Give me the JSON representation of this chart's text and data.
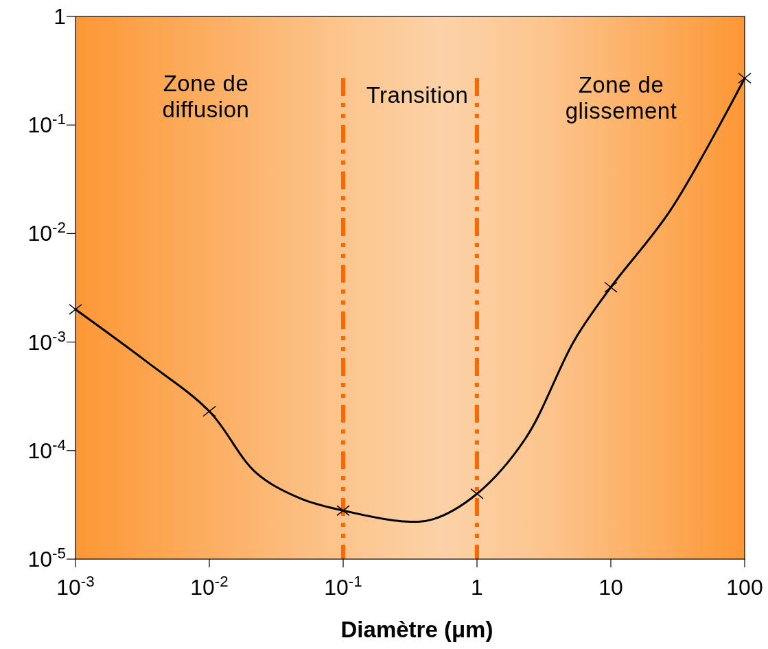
{
  "chart_data": {
    "type": "line",
    "xlabel": "Diamètre (μm)",
    "log": "xy",
    "grid": false,
    "xlim": [
      0.001,
      100
    ],
    "ylim": [
      1e-05,
      1
    ],
    "xticks": [
      {
        "value": 0.001,
        "label": "10$^{-3}$"
      },
      {
        "value": 0.01,
        "label": "10$^{-2}$"
      },
      {
        "value": 0.1,
        "label": "10$^{-1}$"
      },
      1,
      10,
      100
    ],
    "yticks": [
      {
        "value": 1e-05,
        "label": "10$^{-5}$"
      },
      {
        "value": 0.0001,
        "label": "10$^{-4}$"
      },
      {
        "value": 0.001,
        "label": "10$^{-3}$"
      },
      {
        "value": 0.01,
        "label": "10$^{-2}$"
      },
      {
        "value": 0.1,
        "label": "10$^{-1}$"
      },
      1
    ],
    "series": [
      {
        "type": "line",
        "color": "#000000",
        "marker": "none",
        "line_style": "solid",
        "x": [
          0.001,
          0.0034,
          0.01,
          0.0222,
          0.0484,
          0.1,
          0.277,
          0.469,
          1,
          2.31,
          5.35,
          10,
          27.9,
          100
        ],
        "values": [
          0.002,
          0.00066,
          0.00023,
          6.3e-05,
          3.6e-05,
          2.8e-05,
          2.23e-05,
          2.33e-05,
          4e-05,
          0.00013,
          0.00104,
          0.0032,
          0.0164,
          0.27
        ]
      },
      {
        "type": "scatter",
        "color": "#000000",
        "marker": "cross",
        "x": [
          0.001,
          0.01,
          0.1,
          1,
          10,
          100
        ],
        "values": [
          0.002,
          0.00023,
          2.8e-05,
          4e-05,
          0.0032,
          0.27
        ]
      }
    ],
    "ref_lines": [
      {
        "axis": "x",
        "value": 0.1,
        "color": "#ff6600",
        "line_style": "dashed"
      },
      {
        "axis": "x",
        "value": 1,
        "color": "#ff6600",
        "line_style": "dashed"
      }
    ],
    "annotations": [
      "Zone de\ndiffusion",
      "Transition",
      "Zone de\nglissement"
    ]
  }
}
